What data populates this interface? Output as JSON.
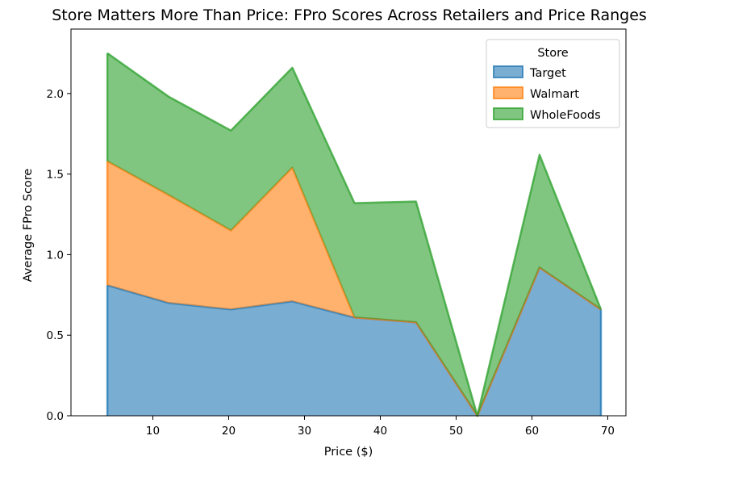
{
  "chart_data": {
    "type": "area",
    "stacked": true,
    "title": "Store Matters More Than Price: FPro Scores Across Retailers and Price Ranges",
    "xlabel": "Price ($)",
    "ylabel": "Average FPro Score",
    "xlim": [
      -0.8,
      72.4
    ],
    "ylim": [
      0,
      2.4
    ],
    "xticks": [
      10,
      20,
      30,
      40,
      50,
      60,
      70
    ],
    "yticks": [
      0.0,
      0.5,
      1.0,
      1.5,
      2.0
    ],
    "xtick_labels": [
      "10",
      "20",
      "30",
      "40",
      "50",
      "60",
      "70"
    ],
    "ytick_labels": [
      "0.0",
      "0.5",
      "1.0",
      "1.5",
      "2.0"
    ],
    "legend": {
      "title": "Store",
      "placement": "top-right"
    },
    "grid": false,
    "x": [
      4.0,
      12.1,
      20.3,
      28.4,
      36.6,
      44.7,
      52.8,
      61.0,
      69.1
    ],
    "series": [
      {
        "name": "Target",
        "color": "#1f77b4",
        "values": [
          0.81,
          0.7,
          0.66,
          0.71,
          0.61,
          0.58,
          0.0,
          0.92,
          0.66
        ]
      },
      {
        "name": "Walmart",
        "color": "#ff7f0e",
        "values": [
          0.77,
          0.67,
          0.49,
          0.83,
          0.0,
          0.0,
          0.0,
          0.0,
          0.0
        ]
      },
      {
        "name": "WholeFoods",
        "color": "#2ca02c",
        "values": [
          0.67,
          0.61,
          0.62,
          0.62,
          0.71,
          0.75,
          0.0,
          0.7,
          0.0
        ]
      }
    ]
  }
}
